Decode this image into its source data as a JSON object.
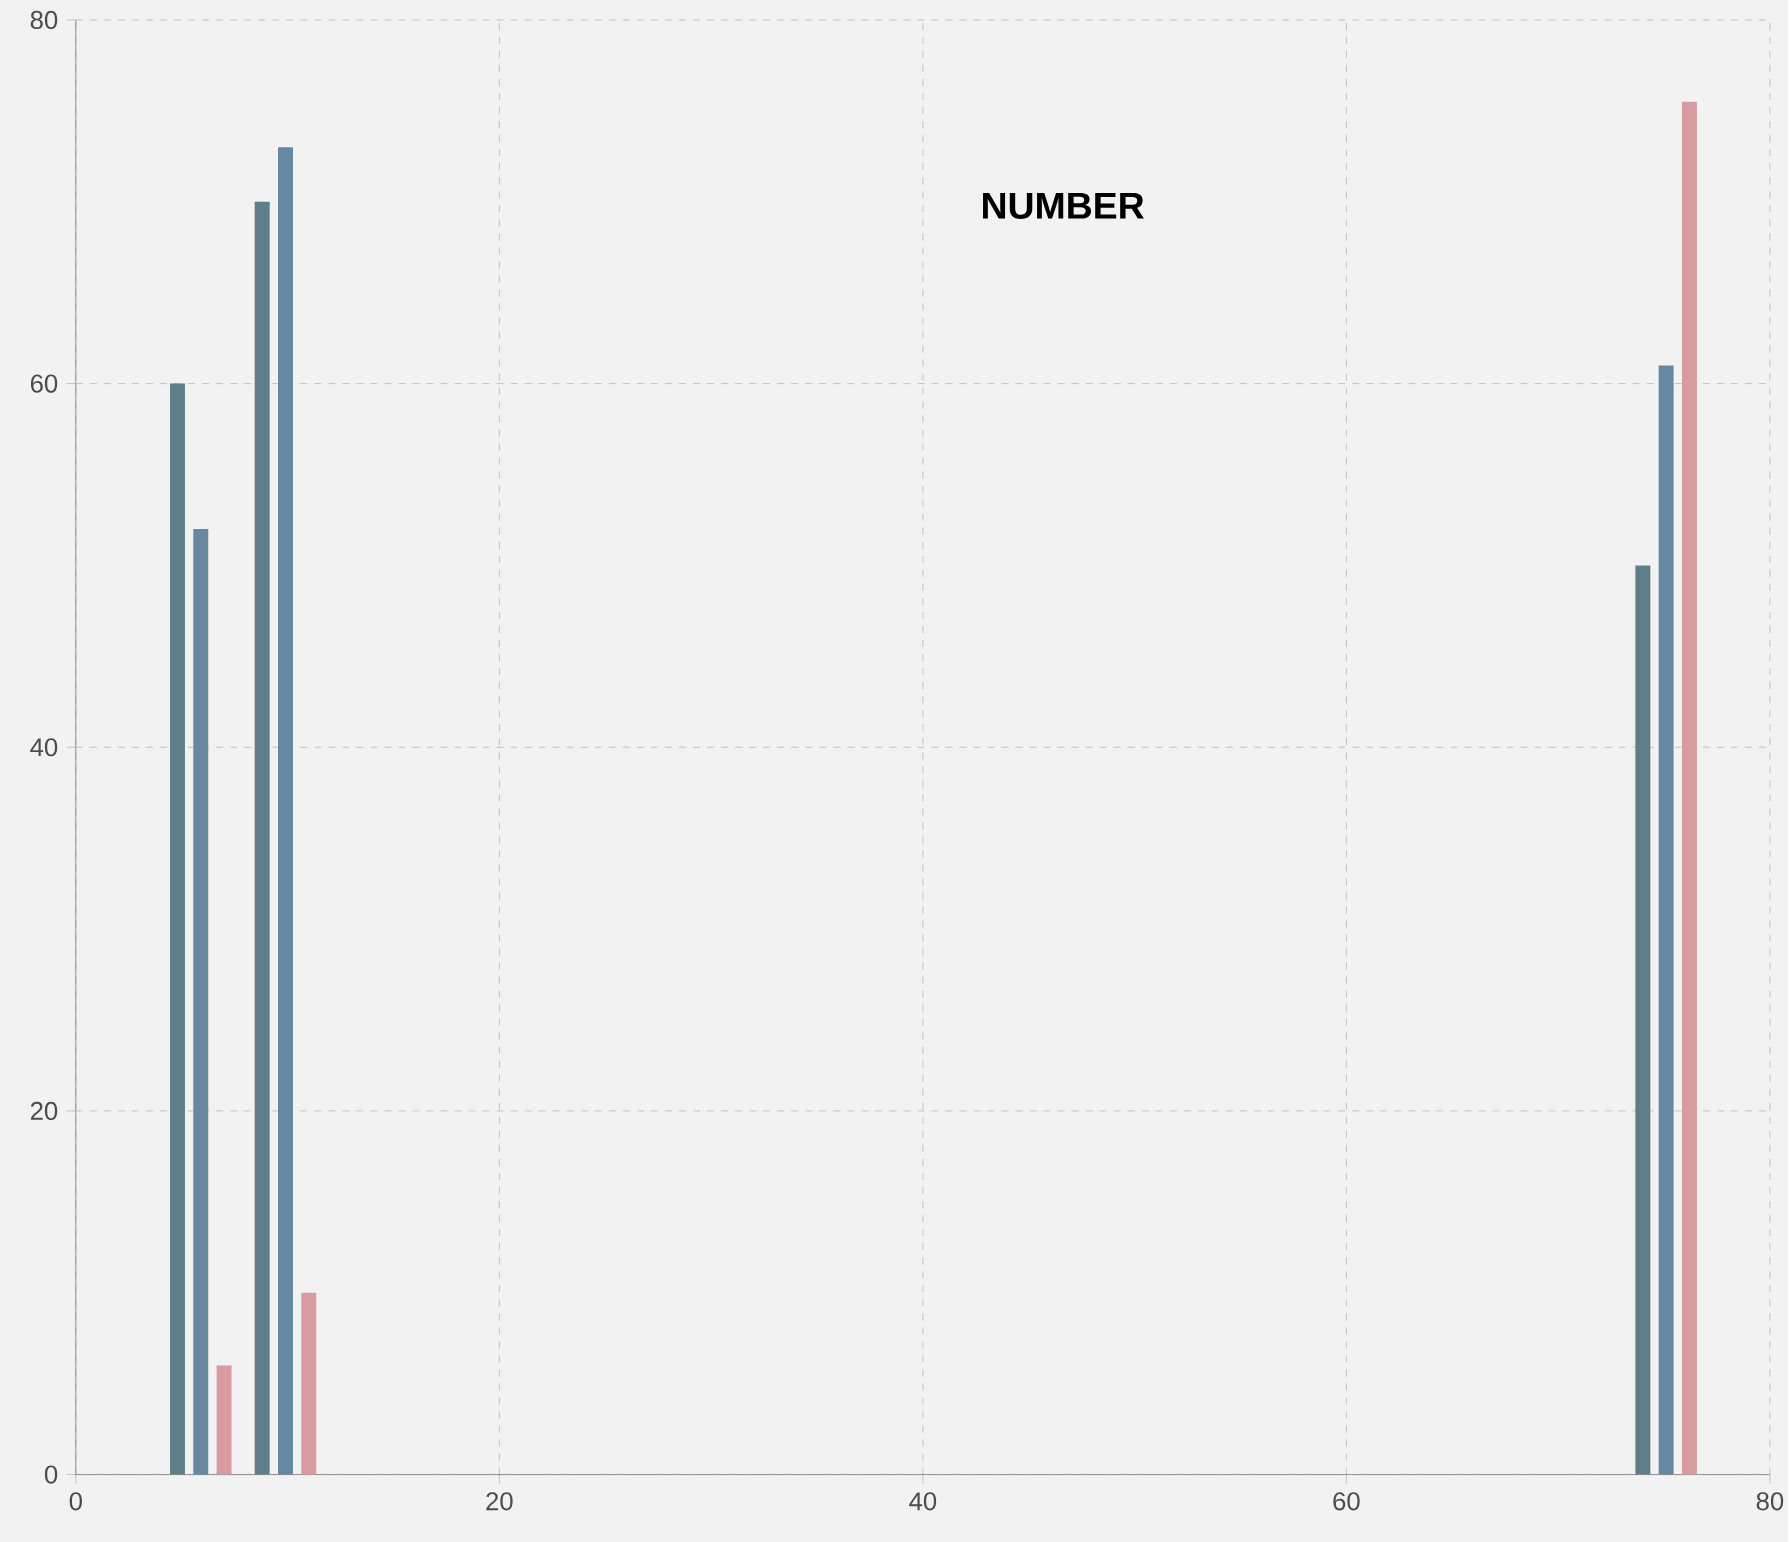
{
  "chart_data": {
    "type": "bar",
    "title": "NUMBER",
    "series": [
      {
        "color": "#607d8a",
        "x": [
          4.8,
          8.8,
          74
        ],
        "values": [
          60,
          70,
          50
        ]
      },
      {
        "color": "#6689a1",
        "x": [
          5.9,
          9.9,
          75.1
        ],
        "values": [
          52,
          73,
          61
        ]
      },
      {
        "color": "#d89ca0",
        "x": [
          7,
          11,
          76.2
        ],
        "values": [
          6,
          10,
          75.5
        ]
      }
    ],
    "xlim": [
      0,
      80
    ],
    "ylim": [
      0,
      80
    ],
    "xticks": [
      0,
      20,
      40,
      60,
      80
    ],
    "yticks": [
      0,
      20,
      40,
      60,
      80
    ],
    "grid": true
  }
}
